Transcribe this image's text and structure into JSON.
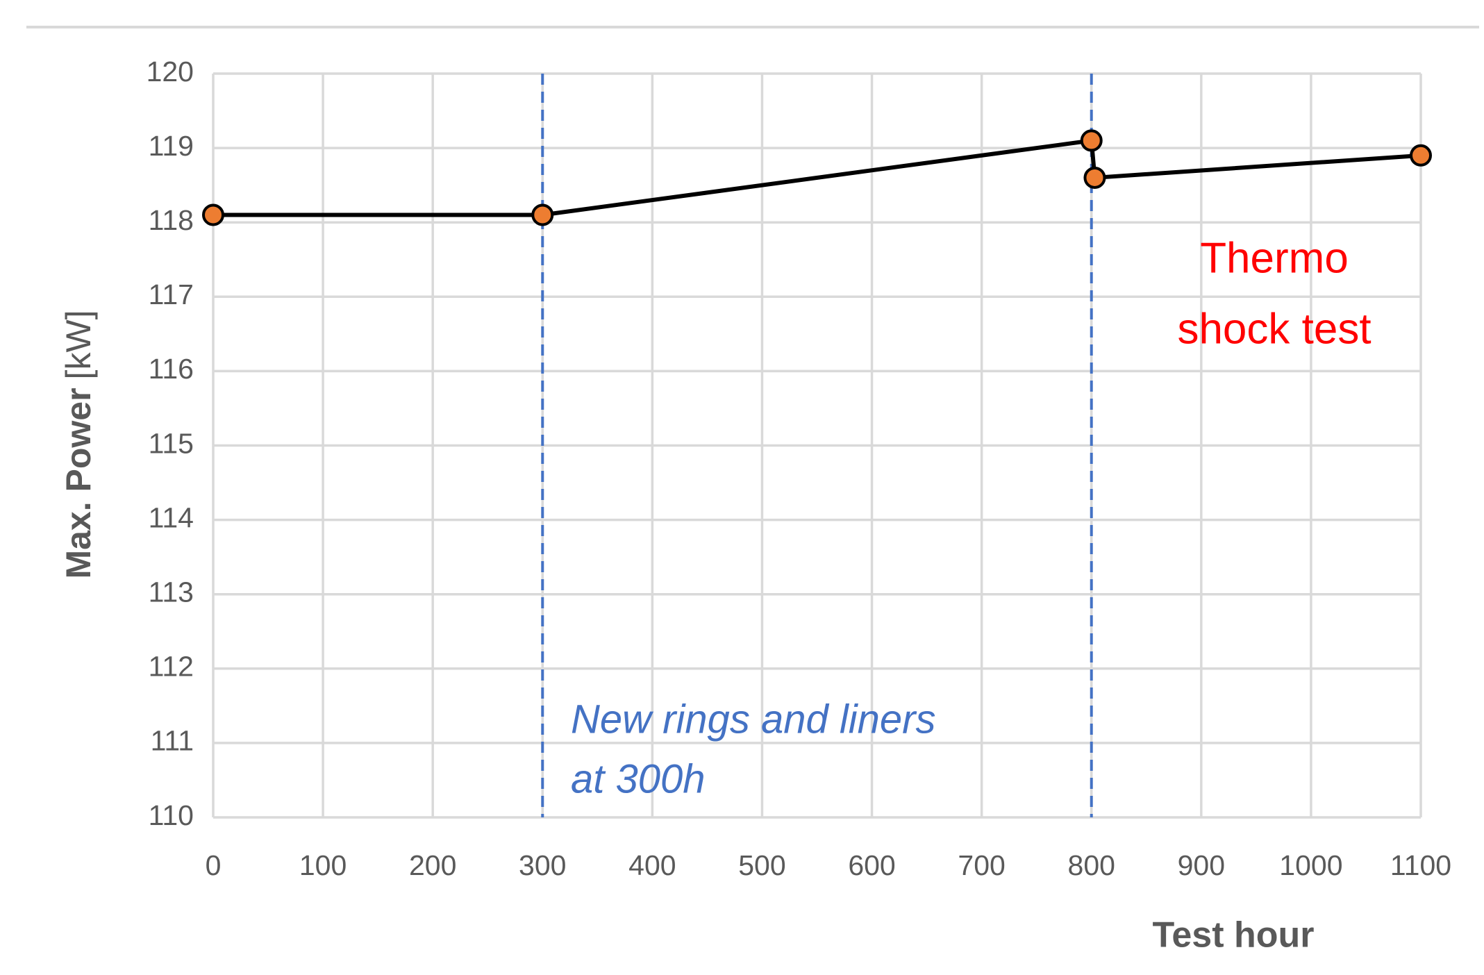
{
  "chart_data": {
    "type": "line",
    "x_label": "Test hour",
    "y_label": "Max. Power",
    "y_label_unit": "[kW]",
    "x": [
      0,
      300,
      800,
      803,
      1100
    ],
    "series": [
      {
        "color": "#000000",
        "marker_color": "#ed7d31",
        "values": [
          118.1,
          118.1,
          119.1,
          118.6,
          118.9
        ]
      }
    ],
    "xlim": [
      0,
      1100
    ],
    "xticks": [
      0,
      100,
      200,
      300,
      400,
      500,
      600,
      700,
      800,
      900,
      1000,
      1100
    ],
    "ylim": [
      110,
      120
    ],
    "yticks": [
      110,
      111,
      112,
      113,
      114,
      115,
      116,
      117,
      118,
      119,
      120
    ],
    "grid": true,
    "vlines": [
      300,
      800
    ],
    "vline_color": "#4472c4",
    "annotations": [
      {
        "lines": [
          "New rings and liners",
          "at 300h"
        ],
        "color": "#4472c4"
      },
      {
        "lines": [
          "Thermo",
          "shock test"
        ],
        "color": "#ff0000"
      }
    ]
  }
}
